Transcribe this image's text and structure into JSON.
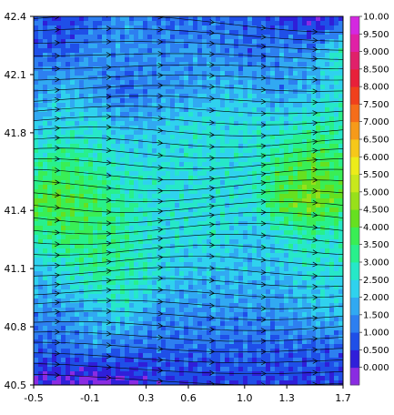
{
  "chart_data": {
    "type": "heatmap",
    "title": "",
    "xlabel": "",
    "ylabel": "",
    "xlim": [
      -0.5,
      1.7
    ],
    "ylim": [
      40.5,
      42.4
    ],
    "x_ticks": [
      "-0.5",
      "-0.1",
      "0.3",
      "0.6",
      "1.0",
      "1.3",
      "1.7"
    ],
    "x_tick_values": [
      -0.5,
      -0.1,
      0.3,
      0.6,
      1.0,
      1.3,
      1.7
    ],
    "y_ticks": [
      "42.4",
      "42.1",
      "41.8",
      "41.4",
      "41.1",
      "40.8",
      "40.5"
    ],
    "y_tick_values": [
      42.4,
      42.1,
      41.8,
      41.4,
      41.1,
      40.8,
      40.5
    ],
    "overlay": "streamlines",
    "flow_direction": "west-to-east",
    "colorbar": {
      "levels": [
        "0.000",
        "0.500",
        "1.000",
        "1.500",
        "2.000",
        "2.500",
        "3.000",
        "3.500",
        "4.000",
        "4.500",
        "5.000",
        "5.500",
        "6.000",
        "6.500",
        "7.000",
        "7.500",
        "8.000",
        "8.500",
        "9.000",
        "9.500",
        "10.00"
      ],
      "colors": [
        "#8a2be2",
        "#2f1fd9",
        "#1f4fe8",
        "#2d7ff0",
        "#31a9f2",
        "#2fd2ee",
        "#26e8c8",
        "#28f08c",
        "#39ee55",
        "#66e020",
        "#98e01a",
        "#c8e81c",
        "#ecec1a",
        "#f6c81a",
        "#f69a1a",
        "#f56d1a",
        "#f0401c",
        "#e8203a",
        "#e0206a",
        "#e020a6",
        "#d428e0"
      ]
    },
    "field": {
      "x": [
        -0.5,
        -0.28,
        -0.06,
        0.16,
        0.38,
        0.6,
        0.82,
        1.04,
        1.26,
        1.48,
        1.7
      ],
      "y": [
        42.4,
        42.21,
        42.02,
        41.83,
        41.64,
        41.45,
        41.26,
        41.07,
        40.88,
        40.69,
        40.5
      ],
      "values": [
        [
          1.5,
          1.0,
          1.5,
          2.0,
          1.5,
          1.5,
          1.5,
          1.5,
          1.0,
          0.5,
          1.0
        ],
        [
          1.5,
          1.5,
          2.0,
          2.0,
          2.0,
          2.0,
          2.0,
          1.5,
          2.0,
          2.0,
          3.5
        ],
        [
          2.0,
          2.5,
          2.0,
          1.5,
          2.0,
          2.0,
          2.5,
          2.5,
          2.0,
          2.5,
          3.0
        ],
        [
          2.5,
          3.0,
          3.0,
          2.5,
          2.5,
          3.0,
          3.0,
          3.0,
          3.0,
          3.5,
          3.5
        ],
        [
          3.5,
          4.0,
          3.5,
          3.0,
          3.0,
          3.0,
          3.0,
          3.0,
          4.0,
          4.5,
          4.0
        ],
        [
          4.5,
          4.5,
          4.0,
          3.5,
          3.0,
          3.0,
          3.0,
          3.0,
          4.5,
          5.0,
          4.5
        ],
        [
          3.5,
          4.0,
          4.0,
          3.5,
          3.0,
          3.0,
          3.0,
          2.5,
          3.0,
          3.5,
          3.0
        ],
        [
          2.5,
          3.0,
          3.5,
          3.5,
          3.0,
          2.5,
          2.5,
          2.5,
          2.5,
          3.0,
          3.0
        ],
        [
          2.0,
          2.0,
          2.5,
          3.0,
          2.0,
          2.0,
          2.0,
          2.0,
          2.0,
          2.5,
          2.5
        ],
        [
          1.5,
          1.5,
          2.0,
          1.5,
          1.5,
          1.5,
          1.5,
          1.5,
          1.5,
          1.5,
          1.5
        ],
        [
          0.5,
          0.5,
          0.0,
          0.5,
          1.0,
          1.0,
          1.0,
          1.0,
          1.0,
          1.0,
          1.0
        ]
      ]
    }
  }
}
